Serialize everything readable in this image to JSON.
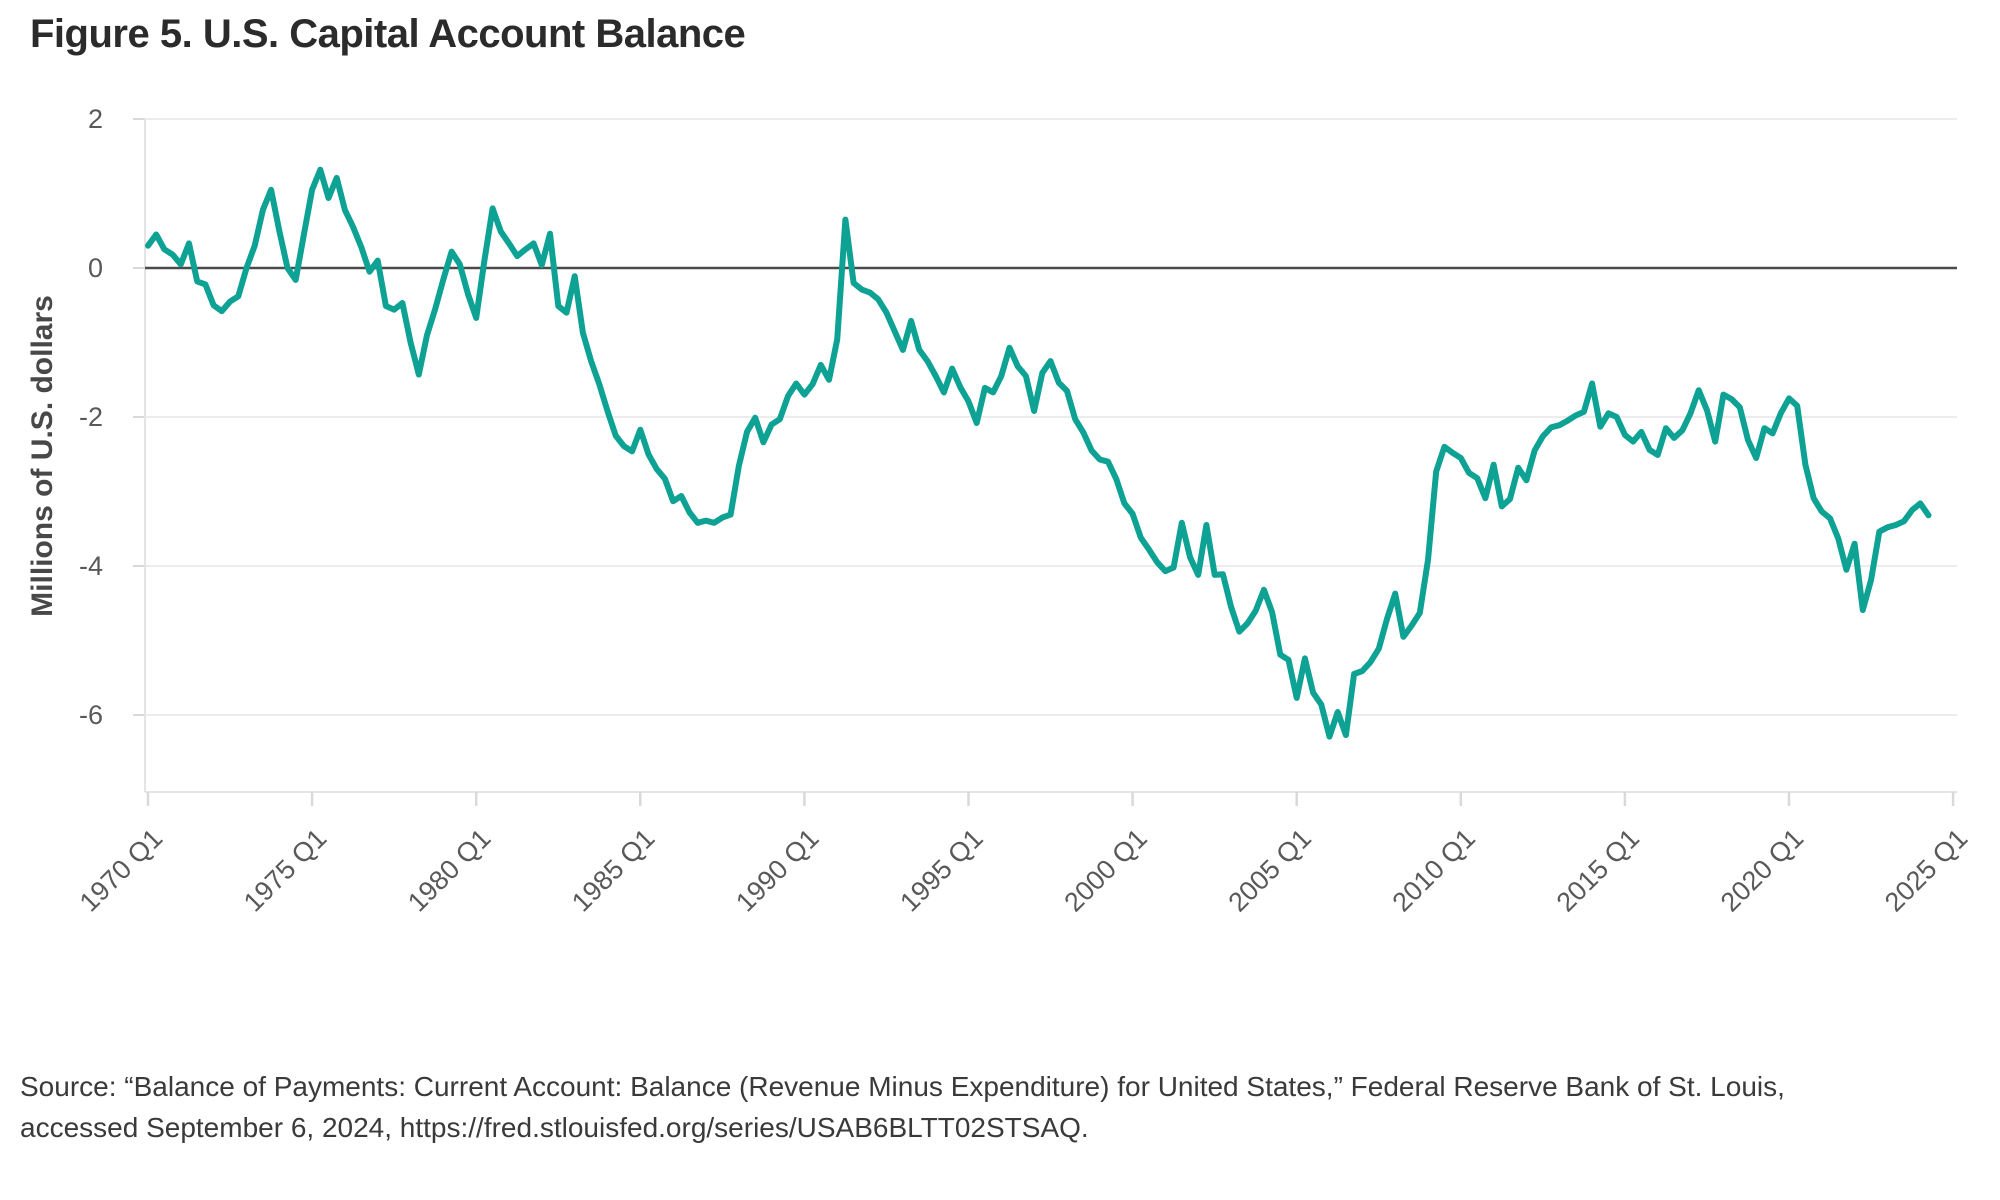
{
  "title": "Figure 5. U.S. Capital Account Balance",
  "y_axis": {
    "label": "Millions of U.S. dollars",
    "tick_labels": [
      "2",
      "0",
      "-2",
      "-4",
      "-6"
    ]
  },
  "x_axis": {
    "tick_labels": [
      "1970 Q1",
      "1975 Q1",
      "1980 Q1",
      "1985 Q1",
      "1990 Q1",
      "1995 Q1",
      "2000 Q1",
      "2005 Q1",
      "2010 Q1",
      "2015 Q1",
      "2020 Q1",
      "2025 Q1"
    ]
  },
  "source": {
    "line1": "Source: “Balance of Payments: Current Account: Balance (Revenue Minus Expenditure) for United States,” Federal Reserve Bank of St. Louis,",
    "line2": "accessed September 6, 2024, https://fred.stlouisfed.org/series/USAB6BLTT02STSAQ."
  },
  "colors": {
    "line": "#0DA294",
    "zero_line": "#4a4a4a",
    "gridline": "#ececec",
    "frame": "#e4e4e4",
    "tick_mark": "#d9d9d9",
    "tick_text": "#595959",
    "axis_label_text": "#484848",
    "title_text": "#2b2b2b",
    "source_text": "#3a3a3a"
  },
  "chart_data": {
    "type": "line",
    "title": "Figure 5. U.S. Capital Account Balance",
    "ylabel": "Millions of U.S. dollars",
    "xlabel": "",
    "frequency": "quarterly",
    "x_start": "1970 Q1",
    "x_end": "2024 Q2",
    "ylim": [
      -7.0,
      2.1
    ],
    "y_ticks": [
      2,
      0,
      -2,
      -4,
      -6
    ],
    "x_tick_labels": [
      "1970 Q1",
      "1975 Q1",
      "1980 Q1",
      "1985 Q1",
      "1990 Q1",
      "1995 Q1",
      "2000 Q1",
      "2005 Q1",
      "2010 Q1",
      "2015 Q1",
      "2020 Q1",
      "2025 Q1"
    ],
    "grid": "horizontal",
    "legend": "none",
    "zero_line": true,
    "values": [
      0.3,
      0.45,
      0.25,
      0.18,
      0.05,
      0.33,
      -0.18,
      -0.22,
      -0.5,
      -0.58,
      -0.45,
      -0.38,
      0.0,
      0.3,
      0.78,
      1.05,
      0.5,
      0.0,
      -0.16,
      0.45,
      1.05,
      1.32,
      0.94,
      1.21,
      0.78,
      0.55,
      0.28,
      -0.05,
      0.1,
      -0.51,
      -0.56,
      -0.47,
      -1.0,
      -1.43,
      -0.9,
      -0.55,
      -0.15,
      0.22,
      0.05,
      -0.35,
      -0.67,
      0.1,
      0.8,
      0.49,
      0.33,
      0.16,
      0.25,
      0.33,
      0.04,
      0.46,
      -0.51,
      -0.6,
      -0.11,
      -0.87,
      -1.25,
      -1.56,
      -1.92,
      -2.25,
      -2.39,
      -2.46,
      -2.17,
      -2.5,
      -2.7,
      -2.83,
      -3.13,
      -3.06,
      -3.28,
      -3.42,
      -3.39,
      -3.42,
      -3.35,
      -3.31,
      -2.66,
      -2.2,
      -2.01,
      -2.34,
      -2.1,
      -2.03,
      -1.72,
      -1.55,
      -1.7,
      -1.56,
      -1.3,
      -1.5,
      -0.96,
      0.65,
      -0.2,
      -0.29,
      -0.33,
      -0.42,
      -0.6,
      -0.85,
      -1.1,
      -0.71,
      -1.1,
      -1.25,
      -1.45,
      -1.67,
      -1.35,
      -1.6,
      -1.79,
      -2.08,
      -1.61,
      -1.67,
      -1.45,
      -1.07,
      -1.32,
      -1.45,
      -1.92,
      -1.41,
      -1.25,
      -1.54,
      -1.65,
      -2.03,
      -2.21,
      -2.45,
      -2.57,
      -2.6,
      -2.83,
      -3.16,
      -3.3,
      -3.62,
      -3.78,
      -3.95,
      -4.07,
      -4.02,
      -3.42,
      -3.88,
      -4.12,
      -3.45,
      -4.12,
      -4.11,
      -4.55,
      -4.88,
      -4.77,
      -4.6,
      -4.32,
      -4.62,
      -5.19,
      -5.26,
      -5.77,
      -5.24,
      -5.7,
      -5.86,
      -6.29,
      -5.96,
      -6.27,
      -5.45,
      -5.41,
      -5.29,
      -5.11,
      -4.71,
      -4.37,
      -4.95,
      -4.8,
      -4.63,
      -3.92,
      -2.73,
      -2.4,
      -2.48,
      -2.55,
      -2.75,
      -2.82,
      -3.09,
      -2.64,
      -3.2,
      -3.1,
      -2.68,
      -2.85,
      -2.45,
      -2.26,
      -2.14,
      -2.11,
      -2.05,
      -1.98,
      -1.93,
      -1.55,
      -2.13,
      -1.95,
      -2.0,
      -2.24,
      -2.33,
      -2.2,
      -2.44,
      -2.51,
      -2.15,
      -2.28,
      -2.18,
      -1.95,
      -1.64,
      -1.91,
      -2.33,
      -1.7,
      -1.76,
      -1.87,
      -2.31,
      -2.55,
      -2.15,
      -2.22,
      -1.95,
      -1.75,
      -1.85,
      -2.64,
      -3.09,
      -3.27,
      -3.36,
      -3.63,
      -4.05,
      -3.7,
      -4.59,
      -4.19,
      -3.54,
      -3.48,
      -3.45,
      -3.4,
      -3.25,
      -3.16,
      -3.32
    ]
  }
}
